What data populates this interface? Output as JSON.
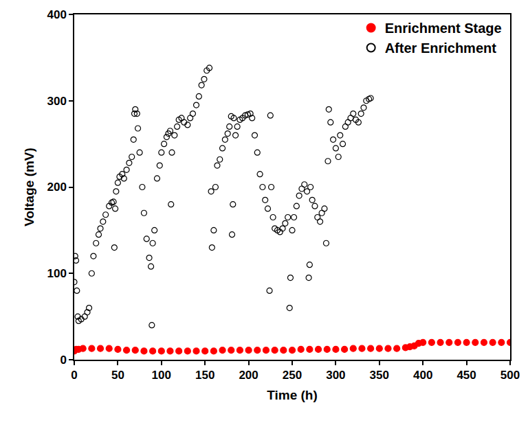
{
  "chart_data": {
    "type": "scatter",
    "x_label": "Time (h)",
    "y_label": "Voltage (mV)",
    "xlim": [
      0,
      500
    ],
    "xticks": [
      0,
      50,
      100,
      150,
      200,
      250,
      300,
      350,
      400,
      450,
      500
    ],
    "ylim": [
      0,
      400
    ],
    "yticks": [
      0,
      100,
      200,
      300,
      400
    ],
    "grid": false,
    "legend": "upper right",
    "series": [
      {
        "name": "Enrichment Stage",
        "color": "#ff0000",
        "marker": "filled",
        "x": [
          0,
          2,
          5,
          10,
          20,
          30,
          40,
          50,
          60,
          70,
          80,
          90,
          100,
          110,
          120,
          130,
          140,
          150,
          160,
          170,
          180,
          190,
          200,
          210,
          220,
          230,
          240,
          250,
          260,
          270,
          280,
          290,
          300,
          310,
          320,
          330,
          340,
          350,
          360,
          370,
          380,
          385,
          390,
          395,
          400,
          410,
          420,
          430,
          440,
          450,
          460,
          470,
          480,
          490,
          500
        ],
        "values": [
          10,
          12,
          12,
          13,
          13,
          13,
          13,
          12,
          11,
          11,
          10,
          10,
          10,
          10,
          10,
          10,
          10,
          10,
          10,
          11,
          11,
          11,
          11,
          11,
          11,
          11,
          11,
          11,
          12,
          12,
          12,
          12,
          12,
          12,
          13,
          13,
          13,
          13,
          13,
          13,
          14,
          15,
          16,
          19,
          20,
          20,
          20,
          20,
          20,
          20,
          20,
          20,
          20,
          20,
          20
        ]
      },
      {
        "name": "After Enrichment",
        "color": "#000000",
        "marker": "open",
        "x": [
          0,
          1,
          2,
          3,
          4,
          5,
          8,
          12,
          15,
          17,
          20,
          22,
          25,
          28,
          30,
          33,
          36,
          40,
          43,
          45,
          46,
          47,
          48,
          50,
          52,
          55,
          57,
          60,
          63,
          66,
          68,
          69,
          70,
          72,
          73,
          75,
          78,
          80,
          83,
          86,
          88,
          89,
          90,
          92,
          95,
          98,
          100,
          103,
          106,
          108,
          110,
          111,
          112,
          115,
          118,
          120,
          123,
          126,
          130,
          133,
          136,
          140,
          143,
          146,
          149,
          152,
          155,
          157,
          158,
          160,
          162,
          164,
          167,
          170,
          173,
          176,
          178,
          180,
          181,
          182,
          183,
          185,
          187,
          190,
          193,
          196,
          199,
          202,
          204,
          207,
          210,
          213,
          216,
          219,
          222,
          224,
          225,
          226,
          228,
          230,
          233,
          236,
          239,
          242,
          245,
          247,
          248,
          250,
          252,
          255,
          258,
          261,
          264,
          267,
          269,
          270,
          271,
          273,
          276,
          279,
          282,
          284,
          287,
          289,
          291,
          292,
          294,
          297,
          300,
          303,
          305,
          308,
          311,
          314,
          317,
          320,
          323,
          326,
          329,
          332,
          335,
          338,
          340
        ],
        "values": [
          90,
          120,
          115,
          80,
          50,
          45,
          47,
          50,
          55,
          60,
          100,
          120,
          135,
          145,
          152,
          160,
          168,
          178,
          182,
          183,
          130,
          175,
          195,
          205,
          212,
          215,
          210,
          220,
          228,
          235,
          255,
          285,
          290,
          285,
          268,
          240,
          200,
          170,
          140,
          118,
          108,
          40,
          135,
          150,
          210,
          225,
          240,
          250,
          258,
          262,
          265,
          180,
          240,
          260,
          270,
          278,
          280,
          275,
          272,
          280,
          285,
          295,
          305,
          318,
          325,
          335,
          338,
          195,
          130,
          150,
          200,
          225,
          232,
          245,
          255,
          262,
          270,
          282,
          145,
          180,
          280,
          260,
          270,
          278,
          280,
          283,
          284,
          285,
          280,
          260,
          240,
          215,
          200,
          185,
          175,
          80,
          283,
          200,
          165,
          152,
          150,
          148,
          152,
          158,
          165,
          60,
          95,
          150,
          165,
          178,
          190,
          198,
          203,
          195,
          95,
          110,
          200,
          185,
          178,
          165,
          160,
          170,
          175,
          135,
          230,
          290,
          275,
          255,
          245,
          235,
          260,
          250,
          270,
          275,
          280,
          285,
          278,
          275,
          285,
          292,
          300,
          302,
          303
        ]
      }
    ]
  }
}
